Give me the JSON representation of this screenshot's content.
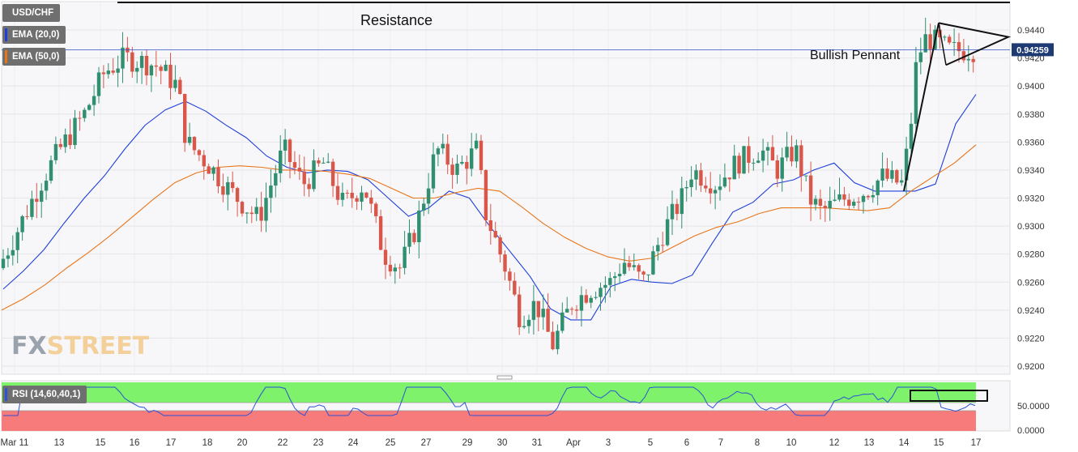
{
  "symbol": "USD/CHF",
  "indicators": {
    "ema20": {
      "label": "EMA (20,0)",
      "color": "#1f3fd9"
    },
    "ema50": {
      "label": "EMA (50,0)",
      "color": "#e8751a"
    },
    "rsi": {
      "label": "RSI (14,60,40,1)",
      "color": "#2b53d6"
    }
  },
  "logo": {
    "fx": "FX",
    "street": "STREET"
  },
  "annotations": {
    "resistance": "Resistance",
    "pennant": "Bullish Pennant"
  },
  "price_badge": "0.94259",
  "colors": {
    "up": "#2f8f6f",
    "down": "#d9574a",
    "bg": "#f7f7f9",
    "rsi_upper": "#7ef26a",
    "rsi_lower": "#f77b7b"
  },
  "chart_data": {
    "type": "candlestick",
    "ylim": [
      0.919,
      0.946
    ],
    "yticks": [
      "0.9440",
      "0.9420",
      "0.9400",
      "0.9380",
      "0.9360",
      "0.9340",
      "0.9320",
      "0.9300",
      "0.9280",
      "0.9260",
      "0.9240",
      "0.9220",
      "0.9200"
    ],
    "xticks": [
      "Mar 11",
      "13",
      "15",
      "16",
      "17",
      "18",
      "20",
      "22",
      "23",
      "24",
      "25",
      "27",
      "29",
      "30",
      "31",
      "Apr",
      "3",
      "5",
      "6",
      "7",
      "8",
      "10",
      "12",
      "13",
      "14",
      "15",
      "17"
    ],
    "current_price": 0.94259,
    "series": [
      {
        "name": "EMA (20,0)",
        "values": [
          0.9255,
          0.9268,
          0.9283,
          0.9302,
          0.932,
          0.9336,
          0.9355,
          0.9372,
          0.9383,
          0.9389,
          0.9382,
          0.9372,
          0.9363,
          0.935,
          0.9342,
          0.9338,
          0.934,
          0.9339,
          0.9333,
          0.932,
          0.9307,
          0.9313,
          0.9325,
          0.932,
          0.93,
          0.9282,
          0.9264,
          0.9241,
          0.9233,
          0.9233,
          0.9257,
          0.9262,
          0.926,
          0.9259,
          0.9265,
          0.9288,
          0.931,
          0.9317,
          0.933,
          0.9333,
          0.934,
          0.9345,
          0.9331,
          0.9325,
          0.9325,
          0.9325,
          0.933,
          0.9373,
          0.9394
        ]
      },
      {
        "name": "EMA (50,0)",
        "values": [
          0.924,
          0.9248,
          0.9258,
          0.927,
          0.9281,
          0.9293,
          0.9306,
          0.9319,
          0.9331,
          0.9338,
          0.9342,
          0.9343,
          0.9342,
          0.934,
          0.934,
          0.9339,
          0.9337,
          0.9334,
          0.9327,
          0.932,
          0.932,
          0.9324,
          0.9327,
          0.9325,
          0.9314,
          0.9302,
          0.9292,
          0.9284,
          0.9278,
          0.9275,
          0.9277,
          0.9285,
          0.9293,
          0.9299,
          0.9303,
          0.9309,
          0.9313,
          0.9313,
          0.9313,
          0.9312,
          0.9311,
          0.9313,
          0.9325,
          0.9335,
          0.9345,
          0.9358
        ]
      }
    ],
    "rsi": {
      "levels": [
        "50.0000",
        "0.0000"
      ]
    }
  }
}
